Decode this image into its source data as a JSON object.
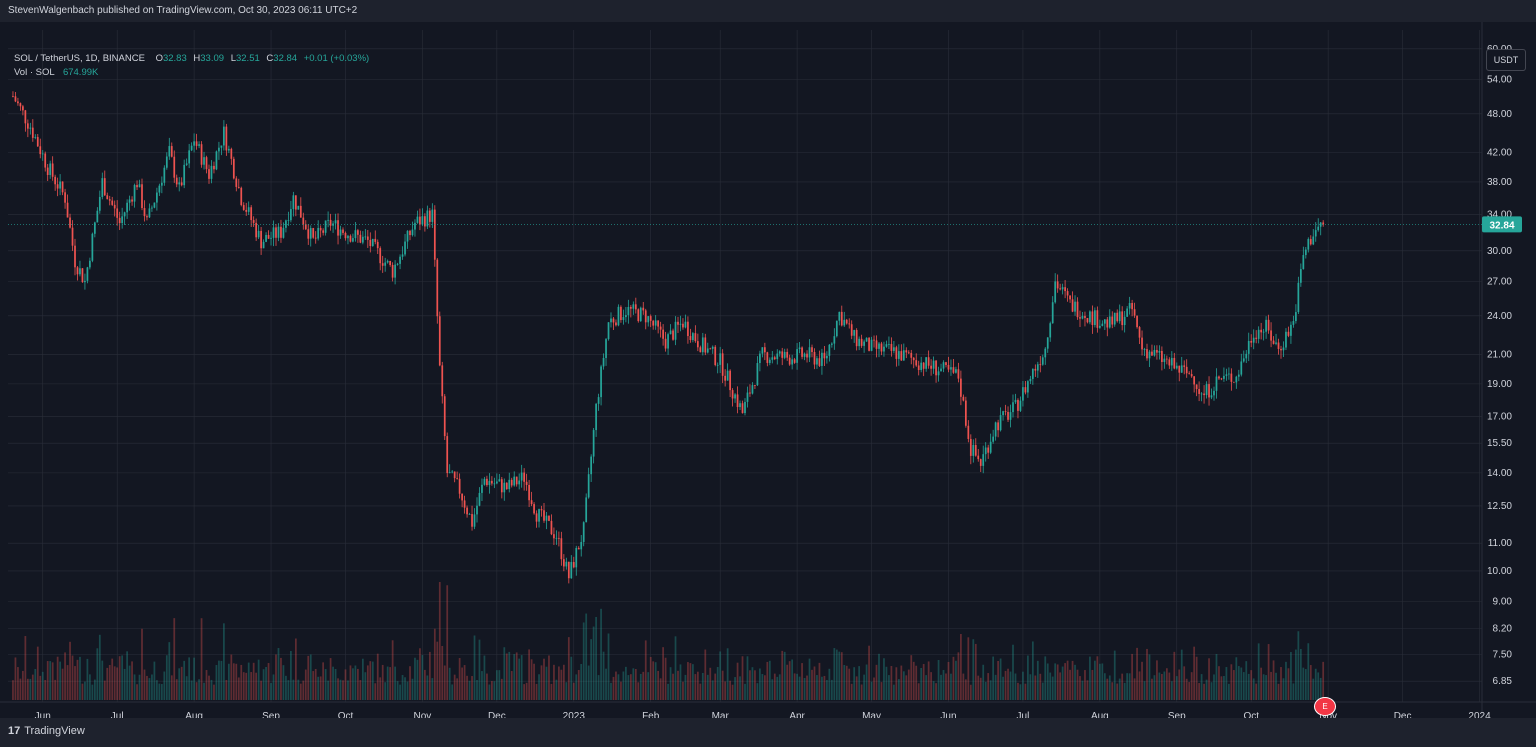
{
  "header": {
    "publisher": "StevenWalgenbach published on TradingView.com, Oct 30, 2023 06:11 UTC+2"
  },
  "legend": {
    "symbol": "SOL / TetherUS, 1D, BINANCE",
    "o_label": "O",
    "o_value": "32.83",
    "h_label": "H",
    "h_value": "33.09",
    "l_label": "L",
    "l_value": "32.51",
    "c_label": "C",
    "c_value": "32.84",
    "change": "+0.01 (+0.03%)",
    "vol_label": "Vol · SOL",
    "vol_value": "674.99K"
  },
  "currency_badge": "USDT",
  "last_price": "32.84",
  "earnings_flag": "E",
  "footer": {
    "logo_mark": "17",
    "logo_text": "TradingView"
  },
  "colors": {
    "up": "#26a69a",
    "down": "#ef5350",
    "background": "#131722",
    "grid": "#2a2e39",
    "text": "#d1d4dc"
  },
  "chart_data": {
    "type": "candlestick",
    "scale": "log",
    "grid": true,
    "price_ticks": [
      "60.00",
      "54.00",
      "48.00",
      "42.00",
      "38.00",
      "34.00",
      "30.00",
      "27.00",
      "24.00",
      "21.00",
      "19.00",
      "17.00",
      "15.50",
      "14.00",
      "12.50",
      "11.00",
      "10.00",
      "9.00",
      "8.20",
      "7.50",
      "6.85"
    ],
    "time_ticks": [
      "Jun",
      "Jul",
      "Aug",
      "Sep",
      "Oct",
      "Nov",
      "Dec",
      "2023",
      "Feb",
      "Mar",
      "Apr",
      "May",
      "Jun",
      "Jul",
      "Aug",
      "Sep",
      "Oct",
      "Nov",
      "Dec",
      "2024"
    ],
    "ylim": [
      6.6,
      64
    ],
    "series": [
      {
        "name": "SOL / TetherUS",
        "points": [
          {
            "date": "2022-05-20",
            "close": 51
          },
          {
            "date": "2022-05-27",
            "close": 46
          },
          {
            "date": "2022-06-03",
            "close": 40
          },
          {
            "date": "2022-06-10",
            "close": 36
          },
          {
            "date": "2022-06-14",
            "close": 29
          },
          {
            "date": "2022-06-18",
            "close": 27
          },
          {
            "date": "2022-06-25",
            "close": 38
          },
          {
            "date": "2022-07-02",
            "close": 33
          },
          {
            "date": "2022-07-09",
            "close": 38
          },
          {
            "date": "2022-07-13",
            "close": 33
          },
          {
            "date": "2022-07-22",
            "close": 42
          },
          {
            "date": "2022-07-26",
            "close": 37
          },
          {
            "date": "2022-08-01",
            "close": 44
          },
          {
            "date": "2022-08-07",
            "close": 39
          },
          {
            "date": "2022-08-13",
            "close": 45
          },
          {
            "date": "2022-08-20",
            "close": 36
          },
          {
            "date": "2022-08-28",
            "close": 31
          },
          {
            "date": "2022-09-05",
            "close": 32
          },
          {
            "date": "2022-09-10",
            "close": 36
          },
          {
            "date": "2022-09-18",
            "close": 31
          },
          {
            "date": "2022-09-25",
            "close": 33
          },
          {
            "date": "2022-10-01",
            "close": 32
          },
          {
            "date": "2022-10-10",
            "close": 31
          },
          {
            "date": "2022-10-20",
            "close": 28
          },
          {
            "date": "2022-10-29",
            "close": 33
          },
          {
            "date": "2022-11-05",
            "close": 34
          },
          {
            "date": "2022-11-08",
            "close": 20
          },
          {
            "date": "2022-11-11",
            "close": 14
          },
          {
            "date": "2022-11-16",
            "close": 13.2
          },
          {
            "date": "2022-11-21",
            "close": 11.8
          },
          {
            "date": "2022-11-26",
            "close": 13.7
          },
          {
            "date": "2022-12-05",
            "close": 13.3
          },
          {
            "date": "2022-12-12",
            "close": 13.8
          },
          {
            "date": "2022-12-17",
            "close": 12.2
          },
          {
            "date": "2022-12-25",
            "close": 11.3
          },
          {
            "date": "2022-12-30",
            "close": 9.8
          },
          {
            "date": "2023-01-05",
            "close": 11.5
          },
          {
            "date": "2023-01-10",
            "close": 17.5
          },
          {
            "date": "2023-01-15",
            "close": 23.5
          },
          {
            "date": "2023-01-22",
            "close": 24.5
          },
          {
            "date": "2023-01-30",
            "close": 24
          },
          {
            "date": "2023-02-07",
            "close": 22
          },
          {
            "date": "2023-02-14",
            "close": 23.5
          },
          {
            "date": "2023-02-20",
            "close": 22
          },
          {
            "date": "2023-03-01",
            "close": 20.5
          },
          {
            "date": "2023-03-10",
            "close": 17.2
          },
          {
            "date": "2023-03-18",
            "close": 21
          },
          {
            "date": "2023-03-28",
            "close": 20.8
          },
          {
            "date": "2023-04-05",
            "close": 21
          },
          {
            "date": "2023-04-12",
            "close": 20.5
          },
          {
            "date": "2023-04-18",
            "close": 24.2
          },
          {
            "date": "2023-04-24",
            "close": 22.2
          },
          {
            "date": "2023-05-01",
            "close": 21.5
          },
          {
            "date": "2023-05-10",
            "close": 21.2
          },
          {
            "date": "2023-05-20",
            "close": 20.5
          },
          {
            "date": "2023-05-28",
            "close": 20
          },
          {
            "date": "2023-06-05",
            "close": 19.5
          },
          {
            "date": "2023-06-10",
            "close": 15.2
          },
          {
            "date": "2023-06-14",
            "close": 14.5
          },
          {
            "date": "2023-06-20",
            "close": 16.5
          },
          {
            "date": "2023-06-28",
            "close": 17.5
          },
          {
            "date": "2023-07-05",
            "close": 19.8
          },
          {
            "date": "2023-07-10",
            "close": 21.5
          },
          {
            "date": "2023-07-14",
            "close": 27
          },
          {
            "date": "2023-07-20",
            "close": 25
          },
          {
            "date": "2023-07-28",
            "close": 24
          },
          {
            "date": "2023-08-05",
            "close": 23.3
          },
          {
            "date": "2023-08-14",
            "close": 24.5
          },
          {
            "date": "2023-08-18",
            "close": 21.5
          },
          {
            "date": "2023-08-25",
            "close": 20.8
          },
          {
            "date": "2023-09-01",
            "close": 20
          },
          {
            "date": "2023-09-08",
            "close": 19.5
          },
          {
            "date": "2023-09-11",
            "close": 18.2
          },
          {
            "date": "2023-09-18",
            "close": 19.3
          },
          {
            "date": "2023-09-25",
            "close": 19.5
          },
          {
            "date": "2023-10-02",
            "close": 22.8
          },
          {
            "date": "2023-10-07",
            "close": 23
          },
          {
            "date": "2023-10-12",
            "close": 21.4
          },
          {
            "date": "2023-10-18",
            "close": 23.5
          },
          {
            "date": "2023-10-22",
            "close": 29.5
          },
          {
            "date": "2023-10-26",
            "close": 32
          },
          {
            "date": "2023-10-30",
            "close": 32.84
          }
        ]
      }
    ]
  }
}
